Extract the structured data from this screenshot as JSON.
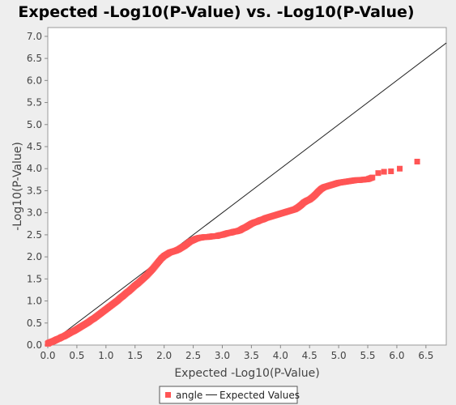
{
  "chart_data": {
    "type": "scatter",
    "title": "Expected -Log10(P-Value) vs. -Log10(P-Value)",
    "xlabel": "Expected -Log10(P-Value)",
    "ylabel": "-Log10(P-Value)",
    "xlim": [
      0,
      6.85
    ],
    "ylim": [
      0,
      7.2
    ],
    "x_ticks": [
      "0.0",
      "0.5",
      "1.0",
      "1.5",
      "2.0",
      "2.5",
      "3.0",
      "3.5",
      "4.0",
      "4.5",
      "5.0",
      "5.5",
      "6.0",
      "6.5"
    ],
    "y_ticks": [
      "0.0",
      "0.5",
      "1.0",
      "1.5",
      "2.0",
      "2.5",
      "3.0",
      "3.5",
      "4.0",
      "4.5",
      "5.0",
      "5.5",
      "6.0",
      "6.5",
      "7.0"
    ],
    "grid": false,
    "legend_position": "bottom",
    "series": [
      {
        "name": "angle",
        "color": "#ff5555",
        "marker": "square",
        "points": [
          [
            0.0,
            0.03
          ],
          [
            0.02,
            0.05
          ],
          [
            0.04,
            0.06
          ],
          [
            0.06,
            0.07
          ],
          [
            0.08,
            0.08
          ],
          [
            0.1,
            0.09
          ],
          [
            0.13,
            0.11
          ],
          [
            0.16,
            0.13
          ],
          [
            0.2,
            0.15
          ],
          [
            0.24,
            0.18
          ],
          [
            0.28,
            0.2
          ],
          [
            0.32,
            0.23
          ],
          [
            0.36,
            0.26
          ],
          [
            0.4,
            0.29
          ],
          [
            0.45,
            0.32
          ],
          [
            0.5,
            0.36
          ],
          [
            0.55,
            0.4
          ],
          [
            0.6,
            0.44
          ],
          [
            0.65,
            0.48
          ],
          [
            0.7,
            0.52
          ],
          [
            0.75,
            0.57
          ],
          [
            0.8,
            0.61
          ],
          [
            0.85,
            0.66
          ],
          [
            0.9,
            0.71
          ],
          [
            0.95,
            0.76
          ],
          [
            1.0,
            0.81
          ],
          [
            1.05,
            0.86
          ],
          [
            1.1,
            0.91
          ],
          [
            1.15,
            0.96
          ],
          [
            1.2,
            1.01
          ],
          [
            1.25,
            1.07
          ],
          [
            1.3,
            1.12
          ],
          [
            1.35,
            1.18
          ],
          [
            1.4,
            1.23
          ],
          [
            1.45,
            1.29
          ],
          [
            1.5,
            1.35
          ],
          [
            1.55,
            1.4
          ],
          [
            1.6,
            1.46
          ],
          [
            1.65,
            1.52
          ],
          [
            1.7,
            1.58
          ],
          [
            1.75,
            1.65
          ],
          [
            1.8,
            1.72
          ],
          [
            1.85,
            1.8
          ],
          [
            1.9,
            1.88
          ],
          [
            1.95,
            1.96
          ],
          [
            2.0,
            2.02
          ],
          [
            2.05,
            2.06
          ],
          [
            2.1,
            2.1
          ],
          [
            2.15,
            2.12
          ],
          [
            2.2,
            2.14
          ],
          [
            2.25,
            2.17
          ],
          [
            2.3,
            2.21
          ],
          [
            2.35,
            2.25
          ],
          [
            2.4,
            2.3
          ],
          [
            2.45,
            2.35
          ],
          [
            2.5,
            2.38
          ],
          [
            2.55,
            2.41
          ],
          [
            2.6,
            2.43
          ],
          [
            2.65,
            2.44
          ],
          [
            2.7,
            2.45
          ],
          [
            2.75,
            2.45
          ],
          [
            2.8,
            2.46
          ],
          [
            2.85,
            2.47
          ],
          [
            2.9,
            2.47
          ],
          [
            2.95,
            2.49
          ],
          [
            3.0,
            2.5
          ],
          [
            3.05,
            2.52
          ],
          [
            3.1,
            2.54
          ],
          [
            3.15,
            2.55
          ],
          [
            3.2,
            2.57
          ],
          [
            3.25,
            2.58
          ],
          [
            3.3,
            2.6
          ],
          [
            3.35,
            2.64
          ],
          [
            3.4,
            2.67
          ],
          [
            3.45,
            2.71
          ],
          [
            3.5,
            2.75
          ],
          [
            3.55,
            2.78
          ],
          [
            3.6,
            2.8
          ],
          [
            3.65,
            2.83
          ],
          [
            3.7,
            2.85
          ],
          [
            3.75,
            2.88
          ],
          [
            3.8,
            2.9
          ],
          [
            3.85,
            2.92
          ],
          [
            3.9,
            2.94
          ],
          [
            3.95,
            2.96
          ],
          [
            4.0,
            2.98
          ],
          [
            4.05,
            3.0
          ],
          [
            4.1,
            3.02
          ],
          [
            4.15,
            3.04
          ],
          [
            4.2,
            3.06
          ],
          [
            4.25,
            3.08
          ],
          [
            4.3,
            3.12
          ],
          [
            4.35,
            3.17
          ],
          [
            4.4,
            3.23
          ],
          [
            4.45,
            3.27
          ],
          [
            4.5,
            3.3
          ],
          [
            4.55,
            3.35
          ],
          [
            4.6,
            3.41
          ],
          [
            4.65,
            3.48
          ],
          [
            4.7,
            3.54
          ],
          [
            4.75,
            3.58
          ],
          [
            4.8,
            3.6
          ],
          [
            4.85,
            3.62
          ],
          [
            4.9,
            3.64
          ],
          [
            4.95,
            3.66
          ],
          [
            5.0,
            3.68
          ],
          [
            5.05,
            3.69
          ],
          [
            5.1,
            3.7
          ],
          [
            5.15,
            3.71
          ],
          [
            5.2,
            3.72
          ],
          [
            5.25,
            3.73
          ],
          [
            5.3,
            3.74
          ],
          [
            5.35,
            3.74
          ],
          [
            5.42,
            3.75
          ],
          [
            5.5,
            3.76
          ],
          [
            5.58,
            3.8
          ],
          [
            5.68,
            3.9
          ],
          [
            5.78,
            3.93
          ],
          [
            5.9,
            3.94
          ],
          [
            6.05,
            4.0
          ],
          [
            6.35,
            4.16
          ]
        ]
      },
      {
        "name": "Expected Values",
        "color": "#222222",
        "marker": "line",
        "points": [
          [
            0,
            0
          ],
          [
            6.85,
            6.85
          ]
        ]
      }
    ]
  }
}
